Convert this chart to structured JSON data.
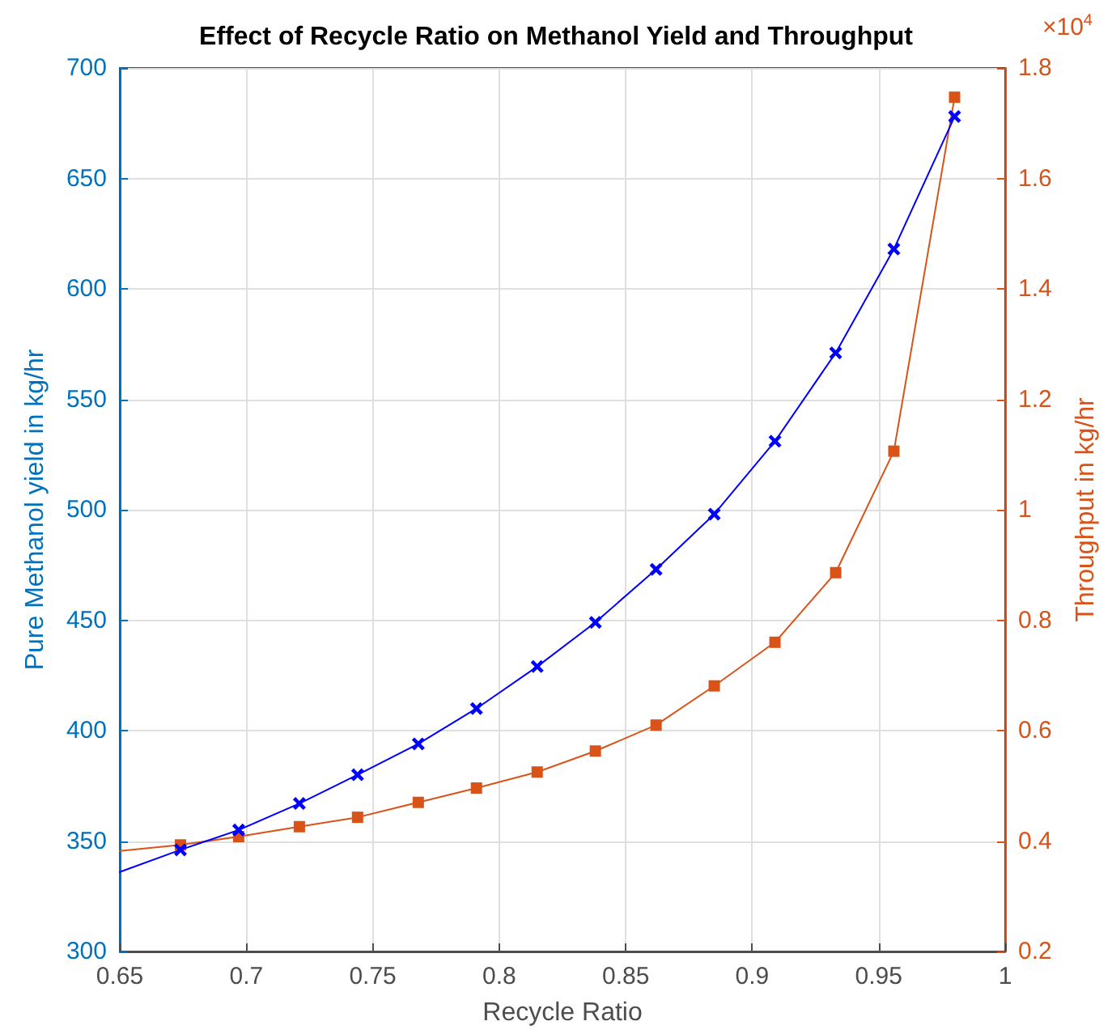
{
  "chart_data": {
    "type": "line",
    "title": "Effect of Recycle Ratio on Methanol Yield and Throughput",
    "xlabel": "Recycle Ratio",
    "ylabel": "Pure Methanol yield in kg/hr",
    "y2label": "Throughput in kg/hr",
    "annotations": [
      "×10$^{4}$"
    ],
    "x": [
      0.65,
      0.674,
      0.697,
      0.721,
      0.744,
      0.768,
      0.791,
      0.815,
      0.838,
      0.862,
      0.885,
      0.909,
      0.933,
      0.956,
      0.98
    ],
    "series": [
      {
        "color": "#0000ff",
        "marker": "cross",
        "values": [
          336,
          346,
          355,
          367,
          380,
          394,
          410,
          429,
          449,
          473,
          498,
          531,
          571,
          618,
          678
        ]
      },
      {
        "color": "#d95319",
        "marker": "square",
        "axis": "y2",
        "values": [
          0.382,
          0.393,
          0.408,
          0.426,
          0.443,
          0.47,
          0.496,
          0.525,
          0.563,
          0.61,
          0.681,
          0.76,
          0.886,
          1.106,
          1.747
        ]
      }
    ],
    "xlim": [
      0.65,
      1
    ],
    "xticks": [
      0.65,
      0.7,
      0.75,
      0.8,
      0.85,
      0.9,
      0.95,
      1
    ],
    "ylim": [
      300,
      700
    ],
    "yticks": [
      300,
      350,
      400,
      450,
      500,
      550,
      600,
      650,
      700
    ],
    "y2lim": [
      0.2,
      1.8
    ],
    "y2ticks": [
      0.2,
      0.4,
      0.6,
      0.8,
      1,
      1.2,
      1.4,
      1.6,
      1.8
    ],
    "grid": true
  }
}
